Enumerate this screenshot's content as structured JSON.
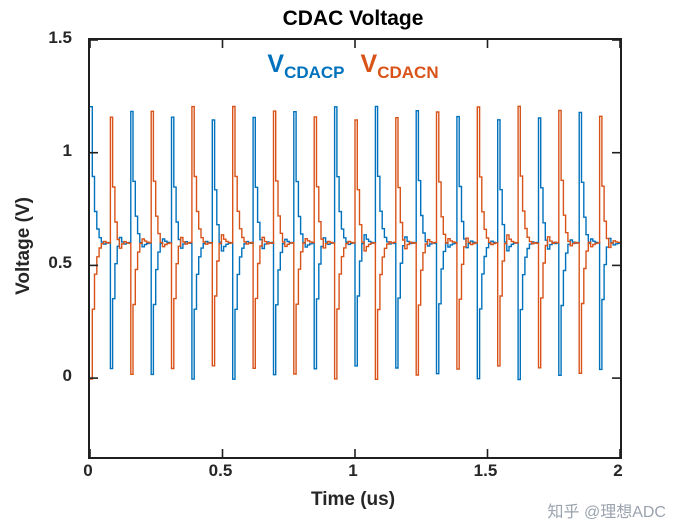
{
  "watermark": "知乎 @理想ADC",
  "legend": [
    {
      "prefix": "V",
      "subscript": "CDACP",
      "color": "#0072BD"
    },
    {
      "prefix": "V",
      "subscript": "CDACN",
      "color": "#D95319"
    }
  ],
  "chart_data": {
    "type": "line",
    "title": "CDAC Voltage",
    "xlabel": "Time (us)",
    "ylabel": "Voltage (V)",
    "xlim": [
      0,
      2
    ],
    "ylim": [
      -0.35,
      1.5
    ],
    "x_ticks": [
      0,
      0.5,
      1,
      1.5,
      2
    ],
    "y_ticks": [
      0,
      0.5,
      1,
      1.5
    ],
    "grid": false,
    "legend_position": "top-center-inside",
    "series": [
      {
        "name": "V_CDACP",
        "color": "#0072BD"
      },
      {
        "name": "V_CDACN",
        "color": "#D95319"
      }
    ],
    "waveform_model": {
      "description": "Complementary SAR-ADC CDAC top-plate voltages: each conversion burst starts at the sampled value (alternating polarity, near full scale) and converges by binary search to the common mode, so VCDACP and VCDACN mirror each other about the common mode.",
      "common_mode_V": 0.6,
      "peak_V": 1.2,
      "min_V": 0.0,
      "conversions": 26,
      "bits_per_conversion": 9,
      "time_span_us": 2,
      "up_bursts_per_trace": 13
    }
  }
}
